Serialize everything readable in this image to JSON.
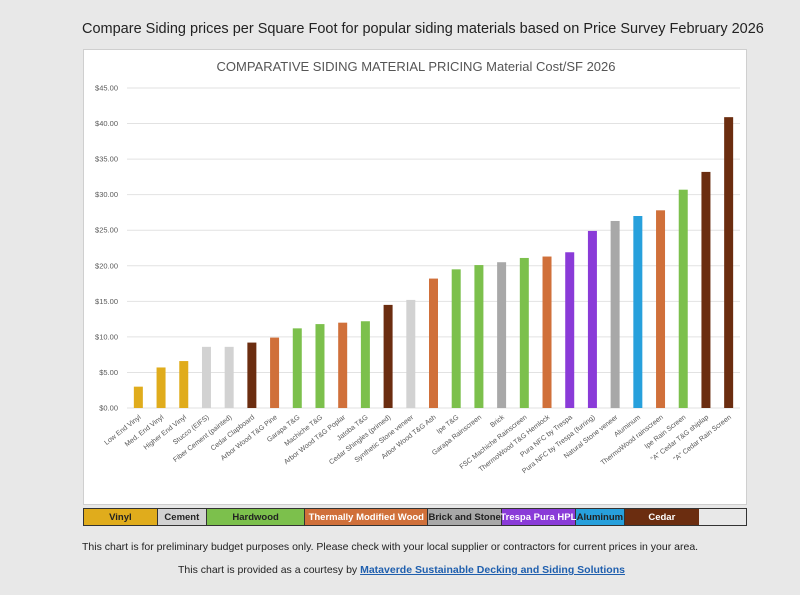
{
  "page": {
    "heading": "Compare Siding prices per Square Foot for popular siding materials based on Price Survey February 2026",
    "disclaimer": "This chart is for preliminary budget purposes only. Please check with your local supplier or contractors for current prices in your area.",
    "courtesy_prefix": "This chart is provided as a courtesy by ",
    "courtesy_link": "Mataverde Sustainable Decking and Siding Solutions"
  },
  "legend": [
    {
      "label": "Vinyl",
      "color": "#e0ac1c",
      "text_color": "#222222",
      "span": 3
    },
    {
      "label": "Cement",
      "color": "#d2d2d2",
      "text_color": "#222222",
      "span": 2
    },
    {
      "label": "Hardwood",
      "color": "#7cc04c",
      "text_color": "#222222",
      "span": 4
    },
    {
      "label": "Thermally Modified Wood",
      "color": "#d0703a",
      "text_color": "#ffffff",
      "span": 5
    },
    {
      "label": "Brick and Stone",
      "color": "#a8a8a8",
      "text_color": "#222222",
      "span": 3
    },
    {
      "label": "Trespa Pura HPL",
      "color": "#8a3bd8",
      "text_color": "#ffffff",
      "span": 3
    },
    {
      "label": "Aluminum",
      "color": "#27a0dc",
      "text_color": "#222222",
      "span": 2
    },
    {
      "label": "Cedar",
      "color": "#6b2d10",
      "text_color": "#ffffff",
      "span": 3
    }
  ],
  "chart_data": {
    "type": "bar",
    "title": "COMPARATIVE SIDING MATERIAL PRICING Material Cost/SF 2026",
    "xlabel": "",
    "ylabel": "",
    "ylim": [
      0,
      45
    ],
    "yticks": [
      "$0.00",
      "$5.00",
      "$10.00",
      "$15.00",
      "$20.00",
      "$25.00",
      "$30.00",
      "$35.00",
      "$40.00",
      "$45.00"
    ],
    "grid": true,
    "categories": [
      "Low End Vinyl",
      "Med. End Vinyl",
      "Higher End Vinyl",
      "Stucco (EIFS)",
      "Fiber Cement (painted)",
      "Cedar Clapboard",
      "Arbor Wood T&G Pine",
      "Garapa T&G",
      "Machiche T&G",
      "Arbor Wood T&G Poplar",
      "Jatoba T&G",
      "Cedar Shingles (primed)",
      "Synthetic Stone veneer",
      "Arbor Wood T&G Ash",
      "Ipe T&G",
      "Garapa Rainscreen",
      "Brick",
      "FSC Machiche Rainscreen",
      "ThermoWood T&G Hemlock",
      "Pura NFC by Trespa",
      "Pura NFC by Trespa (furring)",
      "Natural Stone veneer",
      "Aluminum",
      "ThermoWood rainscreen",
      "Ipe Rain Screen",
      "\"A\" Cedar T&G shiplap",
      "\"A\" Cedar Rain Screen"
    ],
    "values": [
      3.0,
      5.7,
      6.6,
      8.6,
      8.6,
      9.2,
      9.9,
      11.2,
      11.8,
      12.0,
      12.2,
      14.5,
      15.2,
      18.2,
      19.5,
      20.1,
      20.5,
      21.1,
      21.3,
      21.9,
      24.9,
      26.3,
      27.0,
      27.8,
      30.7,
      33.2,
      40.9
    ],
    "colors": [
      "#e0ac1c",
      "#e0ac1c",
      "#e0ac1c",
      "#d2d2d2",
      "#d2d2d2",
      "#6b2d10",
      "#d0703a",
      "#7cc04c",
      "#7cc04c",
      "#d0703a",
      "#7cc04c",
      "#6b2d10",
      "#d2d2d2",
      "#d0703a",
      "#7cc04c",
      "#7cc04c",
      "#a8a8a8",
      "#7cc04c",
      "#d0703a",
      "#8a3bd8",
      "#8a3bd8",
      "#a8a8a8",
      "#27a0dc",
      "#d0703a",
      "#7cc04c",
      "#6b2d10",
      "#6b2d10"
    ]
  }
}
